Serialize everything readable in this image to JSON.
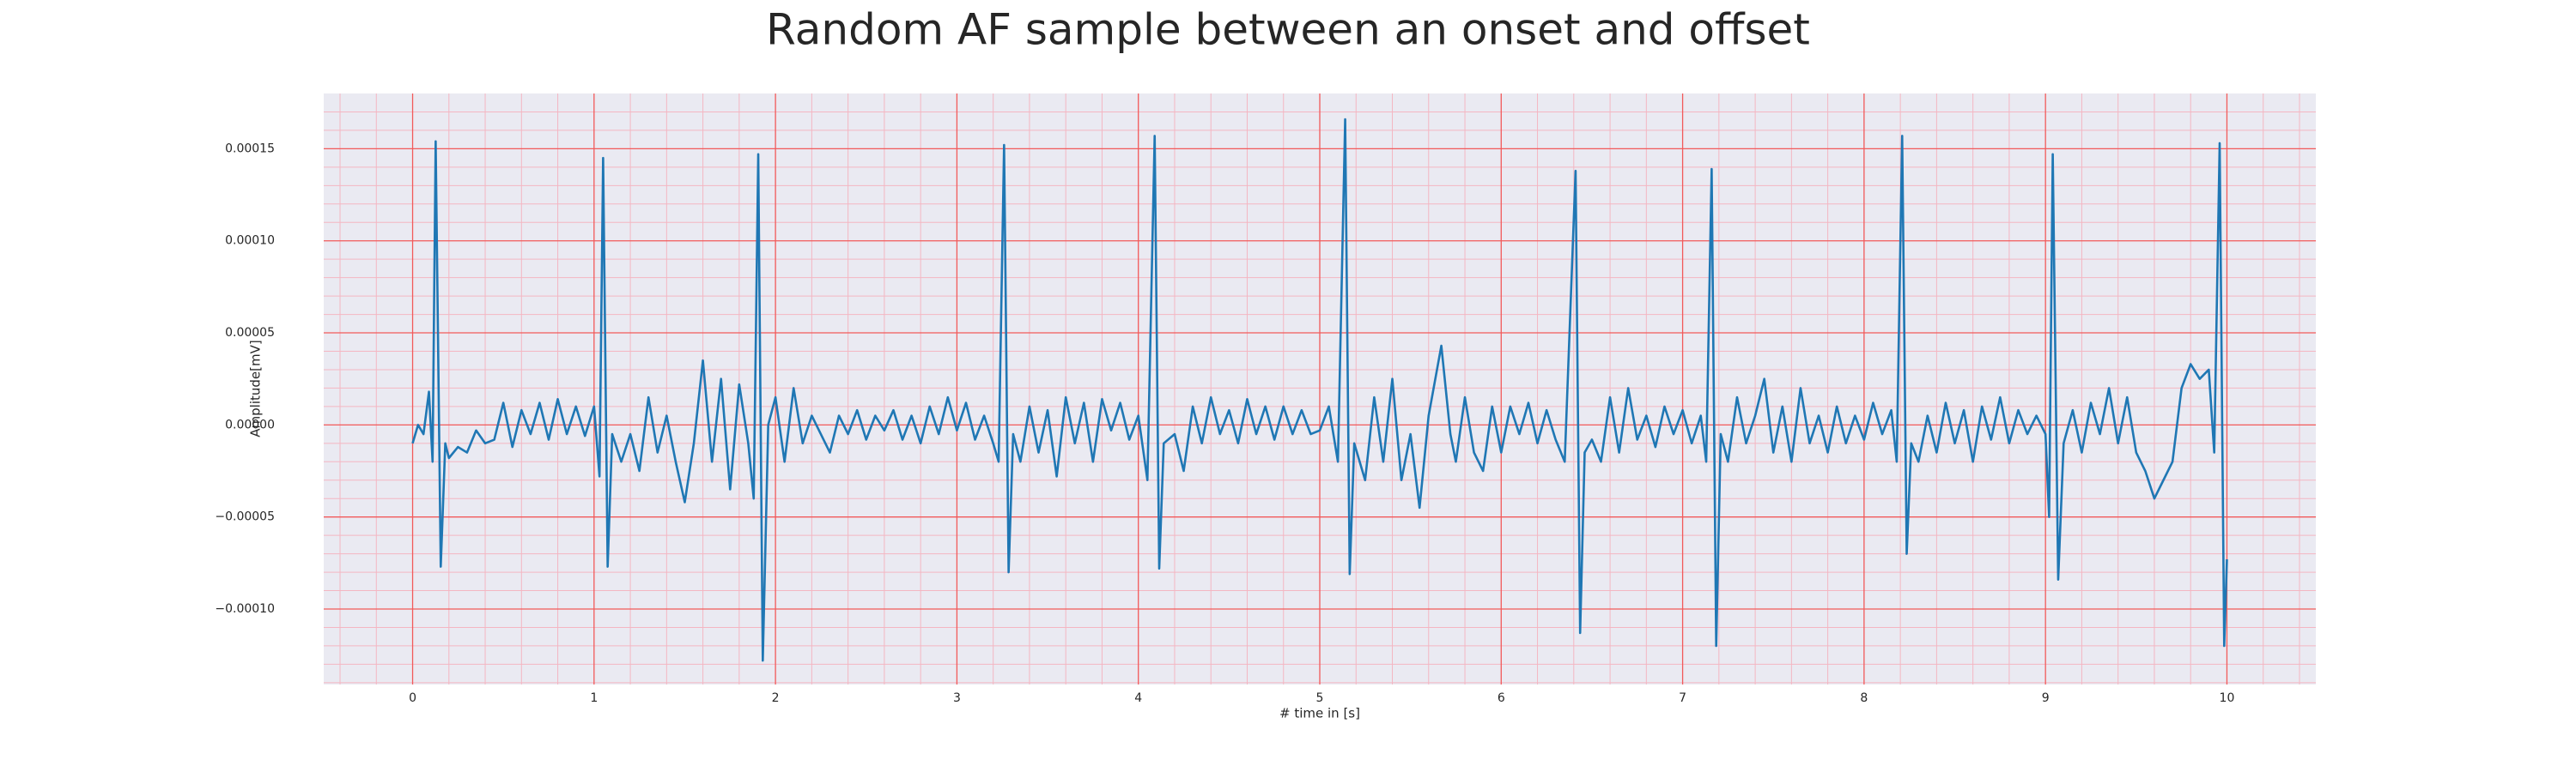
{
  "chart_data": {
    "type": "line",
    "title": "Random AF sample between an onset and offset",
    "xlabel": "# time in [s]",
    "ylabel": "Amplitude[mV]",
    "color": "#1f77b4",
    "grid": true,
    "xlim": [
      -0.49,
      10.49
    ],
    "ylim": [
      -0.000141,
      0.00018
    ],
    "xticks": [
      0,
      1,
      2,
      3,
      4,
      5,
      6,
      7,
      8,
      9,
      10
    ],
    "yticks": [
      {
        "value": -0.0001,
        "label": "−0.00010"
      },
      {
        "value": -5e-05,
        "label": "−0.00005"
      },
      {
        "value": 0,
        "label": "0.00000"
      },
      {
        "value": 5e-05,
        "label": "0.00005"
      },
      {
        "value": 0.0001,
        "label": "0.00010"
      },
      {
        "value": 0.00015,
        "label": "0.00015"
      }
    ],
    "xminorticks": [
      -0.4,
      -0.2,
      0.2,
      0.4,
      0.6,
      0.8,
      1.2,
      1.4,
      1.6,
      1.8,
      2.2,
      2.4,
      2.6,
      2.8,
      3.2,
      3.4,
      3.6,
      3.8,
      4.2,
      4.4,
      4.6,
      4.8,
      5.2,
      5.4,
      5.6,
      5.8,
      6.2,
      6.4,
      6.6,
      6.8,
      7.2,
      7.4,
      7.6,
      7.8,
      8.2,
      8.4,
      8.6,
      8.8,
      9.2,
      9.4,
      9.6,
      9.8,
      10.2,
      10.4
    ],
    "yminorticks": [
      -0.00014,
      -0.00013,
      -0.00012,
      -0.00011,
      -9e-05,
      -8e-05,
      -7e-05,
      -6e-05,
      -4e-05,
      -3e-05,
      -2e-05,
      -1e-05,
      1e-05,
      2e-05,
      3e-05,
      4e-05,
      6e-05,
      7e-05,
      8e-05,
      9e-05,
      0.00011,
      0.00012,
      0.00013,
      0.00014,
      0.00016,
      0.00017
    ],
    "x": [
      0,
      0.03,
      0.06,
      0.09,
      0.11,
      0.127,
      0.155,
      0.18,
      0.2,
      0.25,
      0.3,
      0.35,
      0.4,
      0.45,
      0.5,
      0.55,
      0.6,
      0.65,
      0.7,
      0.75,
      0.8,
      0.85,
      0.9,
      0.95,
      1.0,
      1.03,
      1.05,
      1.075,
      1.1,
      1.15,
      1.2,
      1.25,
      1.3,
      1.35,
      1.4,
      1.45,
      1.5,
      1.55,
      1.6,
      1.65,
      1.7,
      1.75,
      1.8,
      1.85,
      1.88,
      1.905,
      1.93,
      1.96,
      2.0,
      2.05,
      2.1,
      2.15,
      2.2,
      2.25,
      2.3,
      2.35,
      2.4,
      2.45,
      2.5,
      2.55,
      2.6,
      2.65,
      2.7,
      2.75,
      2.8,
      2.85,
      2.9,
      2.95,
      3.0,
      3.05,
      3.1,
      3.15,
      3.2,
      3.23,
      3.26,
      3.285,
      3.31,
      3.35,
      3.4,
      3.45,
      3.5,
      3.55,
      3.6,
      3.65,
      3.7,
      3.75,
      3.8,
      3.85,
      3.9,
      3.95,
      4.0,
      4.05,
      4.09,
      4.115,
      4.14,
      4.2,
      4.25,
      4.3,
      4.35,
      4.4,
      4.45,
      4.5,
      4.55,
      4.6,
      4.65,
      4.7,
      4.75,
      4.8,
      4.85,
      4.9,
      4.95,
      5.0,
      5.05,
      5.1,
      5.14,
      5.165,
      5.19,
      5.25,
      5.3,
      5.35,
      5.4,
      5.45,
      5.5,
      5.55,
      5.6,
      5.67,
      5.72,
      5.75,
      5.8,
      5.85,
      5.9,
      5.95,
      6.0,
      6.05,
      6.1,
      6.15,
      6.2,
      6.25,
      6.3,
      6.35,
      6.41,
      6.435,
      6.46,
      6.5,
      6.55,
      6.6,
      6.65,
      6.7,
      6.75,
      6.8,
      6.85,
      6.9,
      6.95,
      7.0,
      7.05,
      7.1,
      7.13,
      7.16,
      7.185,
      7.21,
      7.25,
      7.3,
      7.35,
      7.4,
      7.45,
      7.5,
      7.55,
      7.6,
      7.65,
      7.7,
      7.75,
      7.8,
      7.85,
      7.9,
      7.95,
      8.0,
      8.05,
      8.1,
      8.15,
      8.18,
      8.21,
      8.235,
      8.26,
      8.3,
      8.35,
      8.4,
      8.45,
      8.5,
      8.55,
      8.6,
      8.65,
      8.7,
      8.75,
      8.8,
      8.85,
      8.9,
      8.95,
      9.0,
      9.02,
      9.04,
      9.07,
      9.1,
      9.15,
      9.2,
      9.25,
      9.3,
      9.35,
      9.4,
      9.45,
      9.5,
      9.55,
      9.6,
      9.65,
      9.7,
      9.75,
      9.8,
      9.85,
      9.9,
      9.93,
      9.96,
      9.985,
      10.0
    ],
    "values": [
      -1e-05,
      0.0,
      -5e-06,
      1.8e-05,
      -2e-05,
      0.000154,
      -7.7e-05,
      -1e-05,
      -1.8e-05,
      -1.2e-05,
      -1.5e-05,
      -3e-06,
      -1e-05,
      -8e-06,
      1.2e-05,
      -1.2e-05,
      8e-06,
      -5e-06,
      1.2e-05,
      -8e-06,
      1.4e-05,
      -5e-06,
      1e-05,
      -6e-06,
      1e-05,
      -2.8e-05,
      0.000145,
      -7.7e-05,
      -5e-06,
      -2e-05,
      -5e-06,
      -2.5e-05,
      1.5e-05,
      -1.5e-05,
      5e-06,
      -2e-05,
      -4.2e-05,
      -1e-05,
      3.5e-05,
      -2e-05,
      2.5e-05,
      -3.5e-05,
      2.2e-05,
      -1e-05,
      -4e-05,
      0.000147,
      -0.000128,
      0.0,
      1.5e-05,
      -2e-05,
      2e-05,
      -1e-05,
      5e-06,
      -5e-06,
      -1.5e-05,
      5e-06,
      -5e-06,
      8e-06,
      -8e-06,
      5e-06,
      -3e-06,
      8e-06,
      -8e-06,
      5e-06,
      -1e-05,
      1e-05,
      -5e-06,
      1.5e-05,
      -3e-06,
      1.2e-05,
      -8e-06,
      5e-06,
      -1e-05,
      -2e-05,
      0.000152,
      -8e-05,
      -5e-06,
      -2e-05,
      1e-05,
      -1.5e-05,
      8e-06,
      -2.8e-05,
      1.5e-05,
      -1e-05,
      1.2e-05,
      -2e-05,
      1.4e-05,
      -3e-06,
      1.2e-05,
      -8e-06,
      5e-06,
      -3e-05,
      0.000157,
      -7.8e-05,
      -1e-05,
      -5e-06,
      -2.5e-05,
      1e-05,
      -1e-05,
      1.5e-05,
      -5e-06,
      8e-06,
      -1e-05,
      1.4e-05,
      -5e-06,
      1e-05,
      -8e-06,
      1e-05,
      -5e-06,
      8e-06,
      -5e-06,
      -3e-06,
      1e-05,
      -2e-05,
      0.000166,
      -8.1e-05,
      -1e-05,
      -3e-05,
      1.5e-05,
      -2e-05,
      2.5e-05,
      -3e-05,
      -5e-06,
      -4.5e-05,
      5e-06,
      4.3e-05,
      -5e-06,
      -2e-05,
      1.5e-05,
      -1.5e-05,
      -2.5e-05,
      1e-05,
      -1.5e-05,
      1e-05,
      -5e-06,
      1.2e-05,
      -1e-05,
      8e-06,
      -8e-06,
      -2e-05,
      0.000138,
      -0.000113,
      -1.5e-05,
      -8e-06,
      -2e-05,
      1.5e-05,
      -1.5e-05,
      2e-05,
      -8e-06,
      5e-06,
      -1.2e-05,
      1e-05,
      -5e-06,
      8e-06,
      -1e-05,
      5e-06,
      -2e-05,
      0.000139,
      -0.00012,
      -5e-06,
      -2e-05,
      1.5e-05,
      -1e-05,
      5e-06,
      2.5e-05,
      -1.5e-05,
      1e-05,
      -2e-05,
      2e-05,
      -1e-05,
      5e-06,
      -1.5e-05,
      1e-05,
      -1e-05,
      5e-06,
      -8e-06,
      1.2e-05,
      -5e-06,
      8e-06,
      -2e-05,
      0.000157,
      -7e-05,
      -1e-05,
      -2e-05,
      5e-06,
      -1.5e-05,
      1.2e-05,
      -1e-05,
      8e-06,
      -2e-05,
      1e-05,
      -8e-06,
      1.5e-05,
      -1e-05,
      8e-06,
      -5e-06,
      5e-06,
      -5e-06,
      -5e-05,
      0.000147,
      -8.4e-05,
      -1e-05,
      8e-06,
      -1.5e-05,
      1.2e-05,
      -5e-06,
      2e-05,
      -1e-05,
      1.5e-05,
      -1.5e-05,
      -2.5e-05,
      -4e-05,
      -3e-05,
      -2e-05,
      2e-05,
      3.3e-05,
      2.5e-05,
      3e-05,
      -1.5e-05,
      0.000153,
      -0.00012,
      -7.3e-05
    ]
  }
}
